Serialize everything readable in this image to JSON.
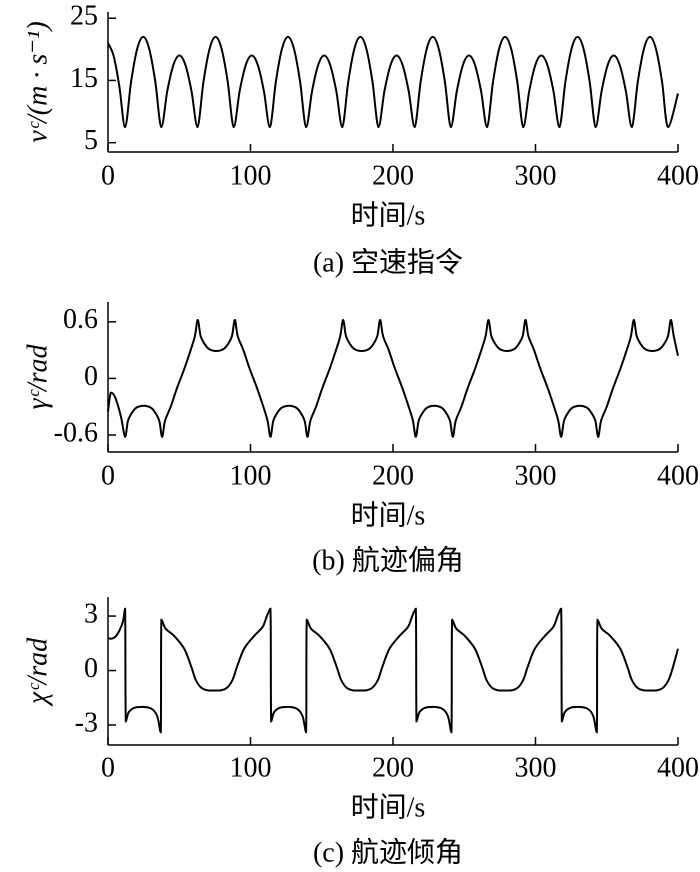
{
  "chart_data": [
    {
      "type": "line",
      "ylabel": "vᶜ/(m · s⁻¹)",
      "xlabel": "时间/s",
      "caption": "(a) 空速指令",
      "color": "#000000",
      "xlim": [
        0,
        400
      ],
      "xticks": [
        0,
        100,
        200,
        300,
        400
      ],
      "ylim": [
        3.5,
        26
      ],
      "yticks": [
        5,
        15,
        25
      ],
      "x": [
        0,
        4,
        8,
        12,
        16.2,
        20.5,
        24.7,
        28.9,
        33.2,
        37.4,
        41.6,
        45.9,
        50.1,
        54.3,
        58.6,
        62.8,
        67,
        71.3,
        75.5,
        79.7,
        84,
        88.2,
        92.4,
        96.7,
        100.9,
        105.1,
        109.4,
        113.6,
        117.8,
        122.1,
        126.3,
        130.5,
        134.8,
        139,
        143.2,
        147.5,
        151.7,
        155.9,
        160.2,
        164.4,
        168.6,
        172.9,
        177.1,
        181.3,
        185.6,
        189.8,
        194,
        198.3,
        202.5,
        206.7,
        211,
        215.2,
        219.4,
        223.7,
        227.9,
        232.1,
        236.4,
        240.6,
        244.8,
        249.1,
        253.3,
        257.5,
        261.8,
        266,
        270.2,
        274.5,
        278.7,
        282.9,
        287.2,
        291.4,
        295.6,
        299.9,
        304.1,
        308.3,
        312.6,
        316.8,
        321,
        325.3,
        329.5,
        333.7,
        338,
        342.2,
        346.4,
        350.7,
        354.9,
        359.1,
        363.4,
        367.6,
        371.8,
        376.1,
        380.3,
        384.5,
        388.8,
        393,
        400
      ],
      "values": [
        21,
        18.9,
        14,
        7.5,
        14.8,
        20.1,
        22,
        20.1,
        14.8,
        7.5,
        13.3,
        17.5,
        19,
        17.5,
        13.3,
        7.5,
        14.8,
        20.1,
        22,
        20.1,
        14.8,
        7.5,
        13.3,
        17.5,
        19,
        17.5,
        13.3,
        7.5,
        14.8,
        20.1,
        22,
        20.1,
        14.8,
        7.5,
        13.3,
        17.5,
        19,
        17.5,
        13.3,
        7.5,
        14.8,
        20.1,
        22,
        20.1,
        14.8,
        7.5,
        13.3,
        17.5,
        19,
        17.5,
        13.3,
        7.5,
        14.8,
        20.1,
        22,
        20.1,
        14.8,
        7.5,
        13.3,
        17.5,
        19,
        17.5,
        13.3,
        7.5,
        14.8,
        20.1,
        22,
        20.1,
        14.8,
        7.5,
        13.3,
        17.5,
        19,
        17.5,
        13.3,
        7.5,
        14.8,
        20.1,
        22,
        20.1,
        14.8,
        7.5,
        13.3,
        17.5,
        19,
        17.5,
        13.3,
        7.5,
        14.8,
        20.1,
        22,
        20.1,
        14.8,
        7.5,
        12.9
      ]
    },
    {
      "type": "line",
      "ylabel": "γᶜ/rad",
      "xlabel": "时间/s",
      "caption": "(b) 航迹偏角",
      "color": "#000000",
      "xlim": [
        0,
        400
      ],
      "xticks": [
        0,
        100,
        200,
        300,
        400
      ],
      "ylim": [
        -0.78,
        0.81
      ],
      "yticks": [
        -0.6,
        0,
        0.6
      ],
      "x": [
        0,
        2,
        5,
        9,
        12,
        14,
        17,
        20,
        25,
        30,
        33,
        36,
        38,
        40,
        44,
        48,
        51,
        54,
        58,
        61,
        63,
        65,
        68,
        71,
        76,
        81,
        84,
        87,
        89,
        91,
        95,
        99,
        102,
        105,
        109,
        112,
        114,
        116,
        119,
        122,
        127,
        132,
        135,
        138,
        140,
        142,
        146,
        150,
        153,
        156,
        160,
        163,
        165,
        167,
        170,
        173,
        178,
        183,
        186,
        189,
        191,
        193,
        197,
        201,
        204,
        207,
        211,
        214,
        216,
        218,
        221,
        224,
        229,
        234,
        237,
        240,
        242,
        244,
        248,
        252,
        255,
        258,
        262,
        265,
        267,
        269,
        272,
        275,
        280,
        285,
        288,
        291,
        293,
        295,
        299,
        303,
        306,
        309,
        313,
        316,
        318,
        320,
        323,
        326,
        331,
        336,
        339,
        342,
        344,
        346,
        350,
        354,
        357,
        360,
        364,
        367,
        369,
        371,
        374,
        377,
        382,
        387,
        390,
        393,
        395,
        397,
        400
      ],
      "values": [
        -0.35,
        -0.15,
        -0.2,
        -0.4,
        -0.62,
        -0.45,
        -0.36,
        -0.31,
        -0.29,
        -0.31,
        -0.36,
        -0.45,
        -0.62,
        -0.45,
        -0.3,
        -0.12,
        0,
        0.12,
        0.3,
        0.45,
        0.62,
        0.45,
        0.36,
        0.31,
        0.29,
        0.31,
        0.36,
        0.45,
        0.62,
        0.45,
        0.3,
        0.12,
        0,
        -0.12,
        -0.3,
        -0.45,
        -0.62,
        -0.45,
        -0.36,
        -0.31,
        -0.29,
        -0.31,
        -0.36,
        -0.45,
        -0.62,
        -0.45,
        -0.3,
        -0.12,
        0,
        0.12,
        0.3,
        0.45,
        0.62,
        0.45,
        0.36,
        0.31,
        0.29,
        0.31,
        0.36,
        0.45,
        0.62,
        0.45,
        0.3,
        0.12,
        0,
        -0.12,
        -0.3,
        -0.45,
        -0.62,
        -0.45,
        -0.36,
        -0.31,
        -0.29,
        -0.31,
        -0.36,
        -0.45,
        -0.62,
        -0.45,
        -0.3,
        -0.12,
        0,
        0.12,
        0.3,
        0.45,
        0.62,
        0.45,
        0.36,
        0.31,
        0.29,
        0.31,
        0.36,
        0.45,
        0.62,
        0.45,
        0.3,
        0.12,
        0,
        -0.12,
        -0.3,
        -0.45,
        -0.62,
        -0.45,
        -0.36,
        -0.31,
        -0.29,
        -0.31,
        -0.36,
        -0.45,
        -0.62,
        -0.45,
        -0.3,
        -0.12,
        0,
        0.12,
        0.3,
        0.45,
        0.62,
        0.45,
        0.36,
        0.31,
        0.29,
        0.31,
        0.36,
        0.45,
        0.62,
        0.45,
        0.24
      ]
    },
    {
      "type": "line",
      "ylabel": "χᶜ/rad",
      "xlabel": "时间/s",
      "caption": "(c) 航迹倾角",
      "color": "#000000",
      "xlim": [
        0,
        400
      ],
      "xticks": [
        0,
        100,
        200,
        300,
        400
      ],
      "ylim": [
        -4.1,
        4.05
      ],
      "yticks": [
        -3,
        0,
        3
      ],
      "x": [
        0,
        2,
        5,
        8,
        10.5,
        12,
        12.5,
        14.5,
        18.5,
        24.5,
        30.5,
        34.5,
        37,
        37.5,
        40.5,
        46.5,
        53.5,
        58.5,
        61.5,
        65.5,
        70.5,
        78.5,
        83.5,
        87.5,
        90.5,
        95.5,
        102.5,
        108.5,
        111.5,
        114,
        114.5,
        116.5,
        120.5,
        126.5,
        132.5,
        136.5,
        139,
        139.5,
        142.5,
        148.5,
        155.5,
        160.5,
        163.5,
        167.5,
        172.5,
        180.5,
        185.5,
        189.5,
        192.5,
        197.5,
        204.5,
        210.5,
        213.5,
        216,
        216.5,
        218.5,
        222.5,
        228.5,
        234.5,
        238.5,
        241,
        241.5,
        244.5,
        250.5,
        257.5,
        262.5,
        265.5,
        269.5,
        274.5,
        282.5,
        287.5,
        291.5,
        294.5,
        299.5,
        306.5,
        312.5,
        315.5,
        318,
        318.5,
        320.5,
        324.5,
        330.5,
        336.5,
        340.5,
        343,
        343.5,
        346.5,
        352.5,
        359.5,
        364.5,
        367.5,
        371.5,
        376.5,
        384.5,
        389.5,
        393.5,
        396.5,
        400
      ],
      "values": [
        1.8,
        1.75,
        1.85,
        2.2,
        2.7,
        3.4,
        -2.8,
        -2.3,
        -2.05,
        -2.0,
        -2.1,
        -2.5,
        -3.4,
        2.8,
        2.3,
        1.9,
        1.2,
        0.2,
        -0.5,
        -0.95,
        -1.1,
        -1.1,
        -0.95,
        -0.5,
        0.2,
        1.2,
        1.9,
        2.4,
        3.0,
        3.4,
        -2.8,
        -2.3,
        -2.05,
        -2.0,
        -2.1,
        -2.5,
        -3.4,
        2.8,
        2.3,
        1.9,
        1.2,
        0.2,
        -0.5,
        -0.95,
        -1.1,
        -1.1,
        -0.95,
        -0.5,
        0.2,
        1.2,
        1.9,
        2.4,
        3.0,
        3.4,
        -2.8,
        -2.3,
        -2.05,
        -2.0,
        -2.1,
        -2.5,
        -3.4,
        2.8,
        2.3,
        1.9,
        1.2,
        0.2,
        -0.5,
        -0.95,
        -1.1,
        -1.1,
        -0.95,
        -0.5,
        0.2,
        1.2,
        1.9,
        2.4,
        3.0,
        3.4,
        -2.8,
        -2.3,
        -2.05,
        -2.0,
        -2.1,
        -2.5,
        -3.4,
        2.8,
        2.3,
        1.9,
        1.2,
        0.2,
        -0.5,
        -0.95,
        -1.1,
        -1.1,
        -0.95,
        -0.5,
        0.2,
        1.2
      ]
    }
  ]
}
